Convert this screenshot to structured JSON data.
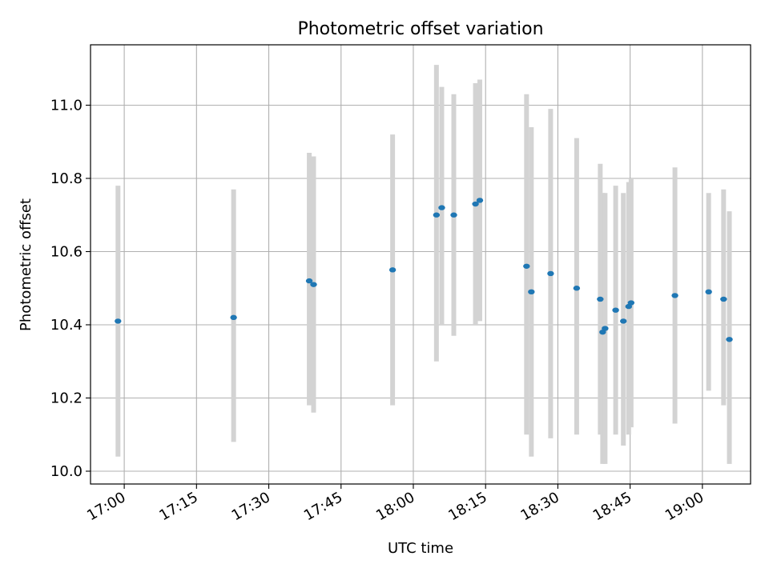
{
  "chart_data": {
    "type": "scatter",
    "title": "Photometric offset variation",
    "xlabel": "UTC time",
    "ylabel": "Photometric offset",
    "xlim": [
      "16:53",
      "19:10"
    ],
    "ylim": [
      9.965,
      11.165
    ],
    "x_ticks": [
      "17:00",
      "17:15",
      "17:30",
      "17:45",
      "18:00",
      "18:15",
      "18:30",
      "18:45",
      "19:00"
    ],
    "y_ticks": [
      "10.0",
      "10.2",
      "10.4",
      "10.6",
      "10.8",
      "11.0"
    ],
    "grid": true,
    "point_color": "#1f77b4",
    "errorbar_color": "#d3d3d3",
    "points": [
      {
        "t": "16:58:42",
        "y": 10.41,
        "lo": 10.04,
        "hi": 10.78
      },
      {
        "t": "17:22:42",
        "y": 10.42,
        "lo": 10.08,
        "hi": 10.77
      },
      {
        "t": "17:38:24",
        "y": 10.52,
        "lo": 10.18,
        "hi": 10.87
      },
      {
        "t": "17:39:18",
        "y": 10.51,
        "lo": 10.16,
        "hi": 10.86
      },
      {
        "t": "17:55:42",
        "y": 10.55,
        "lo": 10.18,
        "hi": 10.92
      },
      {
        "t": "18:04:48",
        "y": 10.7,
        "lo": 10.3,
        "hi": 11.11
      },
      {
        "t": "18:05:54",
        "y": 10.72,
        "lo": 10.4,
        "hi": 11.05
      },
      {
        "t": "18:08:24",
        "y": 10.7,
        "lo": 10.37,
        "hi": 11.03
      },
      {
        "t": "18:12:54",
        "y": 10.73,
        "lo": 10.4,
        "hi": 11.06
      },
      {
        "t": "18:13:48",
        "y": 10.74,
        "lo": 10.41,
        "hi": 11.07
      },
      {
        "t": "18:23:30",
        "y": 10.56,
        "lo": 10.1,
        "hi": 11.03
      },
      {
        "t": "18:24:30",
        "y": 10.49,
        "lo": 10.04,
        "hi": 10.94
      },
      {
        "t": "18:28:30",
        "y": 10.54,
        "lo": 10.09,
        "hi": 10.99
      },
      {
        "t": "18:33:54",
        "y": 10.5,
        "lo": 10.1,
        "hi": 10.91
      },
      {
        "t": "18:38:48",
        "y": 10.47,
        "lo": 10.1,
        "hi": 10.84
      },
      {
        "t": "18:39:18",
        "y": 10.38,
        "lo": 10.02,
        "hi": 10.76
      },
      {
        "t": "18:39:48",
        "y": 10.39,
        "lo": 10.02,
        "hi": 10.76
      },
      {
        "t": "18:42:00",
        "y": 10.44,
        "lo": 10.1,
        "hi": 10.78
      },
      {
        "t": "18:43:36",
        "y": 10.41,
        "lo": 10.07,
        "hi": 10.76
      },
      {
        "t": "18:44:42",
        "y": 10.45,
        "lo": 10.1,
        "hi": 10.79
      },
      {
        "t": "18:45:12",
        "y": 10.46,
        "lo": 10.12,
        "hi": 10.8
      },
      {
        "t": "18:54:18",
        "y": 10.48,
        "lo": 10.13,
        "hi": 10.83
      },
      {
        "t": "19:01:18",
        "y": 10.49,
        "lo": 10.22,
        "hi": 10.76
      },
      {
        "t": "19:04:24",
        "y": 10.47,
        "lo": 10.18,
        "hi": 10.77
      },
      {
        "t": "19:05:36",
        "y": 10.36,
        "lo": 10.02,
        "hi": 10.71
      }
    ]
  }
}
